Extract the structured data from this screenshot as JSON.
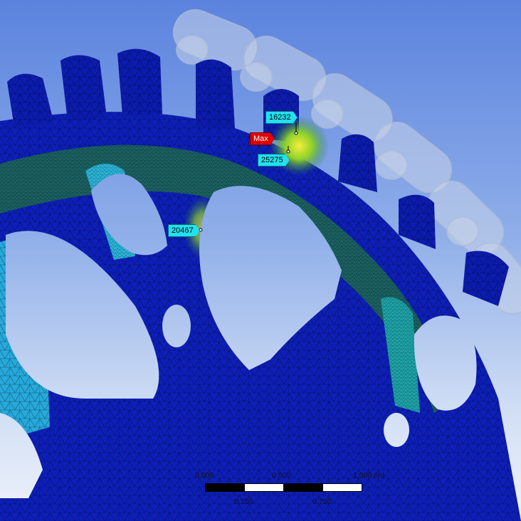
{
  "viewer": {
    "background_top": "#5b83de",
    "background_bottom": "#eef2fb",
    "mesh_colors": {
      "low": "#0a17b8",
      "mid_low": "#1ea4d8",
      "mid": "#1f7a52",
      "high": "#7cd12c",
      "max": "#f0e93a"
    }
  },
  "probes": [
    {
      "label": "16232"
    },
    {
      "label": "Max"
    },
    {
      "label": "25275"
    },
    {
      "label": "20467"
    }
  ],
  "scale_bar": {
    "top_labels": [
      "0.000",
      "0.500",
      "1.000 (in)"
    ],
    "bottom_labels": [
      "0.250",
      "0.750"
    ]
  }
}
